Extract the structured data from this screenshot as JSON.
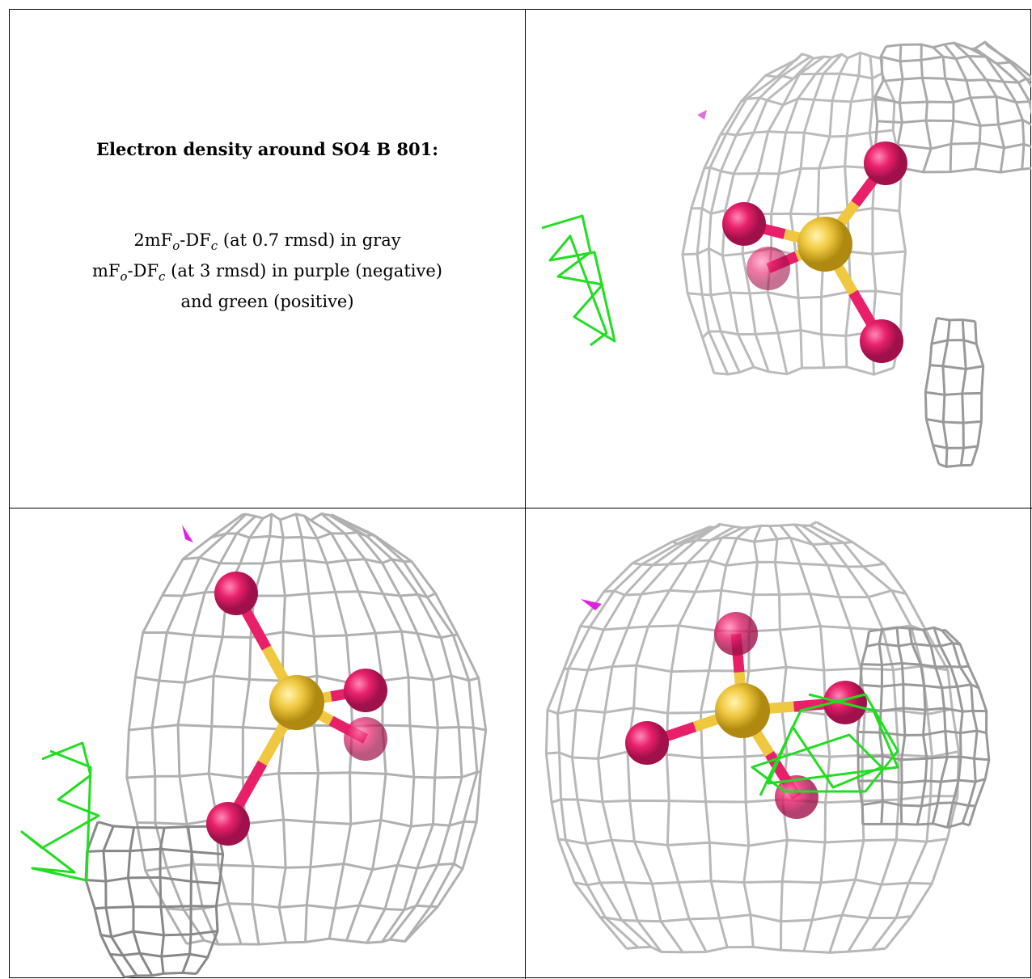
{
  "caption": {
    "title": "Electron density around SO4 B 801:",
    "lines": [
      [
        {
          "text": "2mF"
        },
        {
          "sub": "o"
        },
        {
          "text": "-DF"
        },
        {
          "sub": "c"
        },
        {
          "text": " (at 0.7 rmsd) in gray"
        }
      ],
      [
        {
          "text": "mF"
        },
        {
          "sub": "o"
        },
        {
          "text": "-DF"
        },
        {
          "sub": "c"
        },
        {
          "text": " (at 3 rmsd) in purple (negative)"
        }
      ],
      [
        {
          "text": "and green (positive)"
        }
      ]
    ]
  }
}
